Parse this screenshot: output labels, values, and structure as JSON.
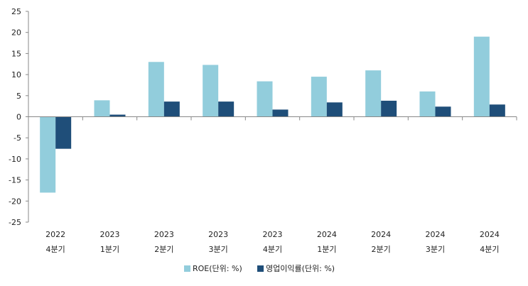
{
  "chart_data": {
    "type": "bar",
    "categories": [
      [
        "2022",
        "4분기"
      ],
      [
        "2023",
        "1분기"
      ],
      [
        "2023",
        "2분기"
      ],
      [
        "2023",
        "3분기"
      ],
      [
        "2023",
        "4분기"
      ],
      [
        "2024",
        "1분기"
      ],
      [
        "2024",
        "2분기"
      ],
      [
        "2024",
        "3분기"
      ],
      [
        "2024",
        "4분기"
      ]
    ],
    "series": [
      {
        "name": "ROE(단위: %)",
        "color": "#92CDDC",
        "values": [
          -18.0,
          3.9,
          13.0,
          12.3,
          8.4,
          9.5,
          11.0,
          6.0,
          19.0
        ]
      },
      {
        "name": "영업이익률(단위: %)",
        "color": "#1F4E79",
        "values": [
          -7.6,
          0.5,
          3.6,
          3.6,
          1.7,
          3.4,
          3.8,
          2.4,
          2.9
        ]
      }
    ],
    "ylim": [
      -25,
      25
    ],
    "yticks": [
      -25,
      -20,
      -15,
      -10,
      -5,
      0,
      5,
      10,
      15,
      20,
      25
    ],
    "grid": false,
    "legend": "bottom"
  }
}
